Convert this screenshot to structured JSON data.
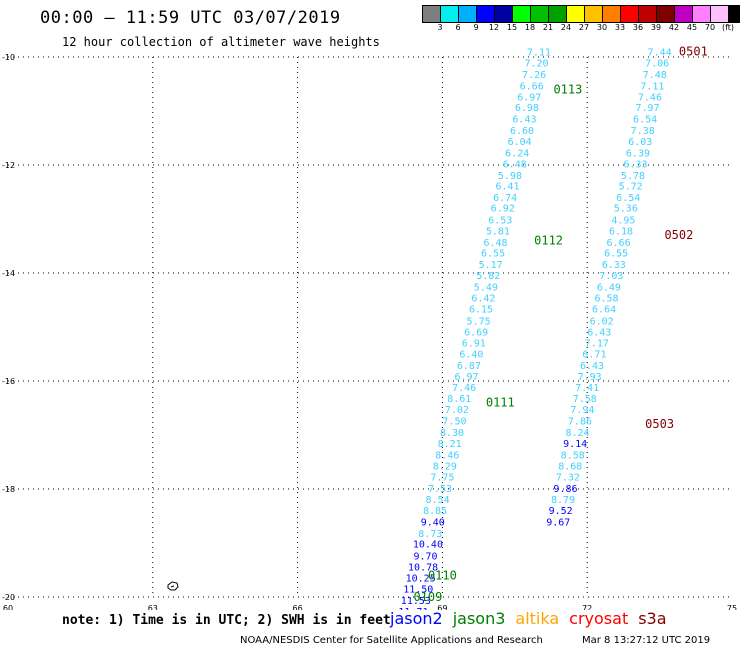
{
  "header": {
    "title": "00:00 – 11:59 UTC 03/07/2019",
    "subtitle": "12 hour collection of altimeter wave heights"
  },
  "scale": {
    "colors": [
      "#7f7f7f",
      "#00f0f0",
      "#00b0ff",
      "#0000ff",
      "#0000a0",
      "#00ff00",
      "#00c000",
      "#00a000",
      "#ffff00",
      "#ffc000",
      "#ff8000",
      "#ff0000",
      "#c00000",
      "#800000",
      "#c000c0",
      "#ff80ff",
      "#ffc0ff",
      "#000000"
    ],
    "labels": [
      "3",
      "6",
      "9",
      "12",
      "15",
      "18",
      "21",
      "24",
      "27",
      "30",
      "33",
      "36",
      "39",
      "42",
      "45",
      "70",
      "(ft)"
    ]
  },
  "chart_data": {
    "type": "scatter",
    "xlim": [
      60,
      75
    ],
    "ylim": [
      -20,
      -10
    ],
    "x_ticks": [
      "60",
      "63",
      "66",
      "69",
      "72",
      "75"
    ],
    "y_ticks": [
      "-10",
      "-12",
      "-14",
      "-16",
      "-18",
      "-20"
    ],
    "series": [
      {
        "labels": [
          {
            "text": "7.11",
            "lon": 71.0,
            "lat": -9.92,
            "color": "#40d0ff"
          },
          {
            "text": "7.20",
            "lon": 70.95,
            "lat": -10.12,
            "color": "#40d0ff"
          },
          {
            "text": "7.26",
            "lon": 70.9,
            "lat": -10.33,
            "color": "#40d0ff"
          },
          {
            "text": "6.66",
            "lon": 70.85,
            "lat": -10.55,
            "color": "#40d0ff"
          },
          {
            "text": "6.97",
            "lon": 70.8,
            "lat": -10.75,
            "color": "#40d0ff"
          },
          {
            "text": "6.98",
            "lon": 70.75,
            "lat": -10.94,
            "color": "#40d0ff"
          },
          {
            "text": "6.43",
            "lon": 70.7,
            "lat": -11.16,
            "color": "#40d0ff"
          },
          {
            "text": "6.60",
            "lon": 70.65,
            "lat": -11.37,
            "color": "#40d0ff"
          },
          {
            "text": "6.04",
            "lon": 70.6,
            "lat": -11.57,
            "color": "#40d0ff"
          },
          {
            "text": "6.24",
            "lon": 70.55,
            "lat": -11.79,
            "color": "#40d0ff"
          },
          {
            "text": "6.48",
            "lon": 70.5,
            "lat": -11.99,
            "color": "#40d0ff"
          },
          {
            "text": "5.98",
            "lon": 70.4,
            "lat": -12.2,
            "color": "#40d0ff"
          },
          {
            "text": "6.41",
            "lon": 70.35,
            "lat": -12.4,
            "color": "#40d0ff"
          },
          {
            "text": "6.74",
            "lon": 70.3,
            "lat": -12.61,
            "color": "#40d0ff"
          },
          {
            "text": "6.92",
            "lon": 70.25,
            "lat": -12.81,
            "color": "#40d0ff"
          },
          {
            "text": "6.53",
            "lon": 70.2,
            "lat": -13.03,
            "color": "#40d0ff"
          },
          {
            "text": "5.81",
            "lon": 70.15,
            "lat": -13.23,
            "color": "#40d0ff"
          },
          {
            "text": "6.48",
            "lon": 70.1,
            "lat": -13.44,
            "color": "#40d0ff"
          },
          {
            "text": "6.55",
            "lon": 70.05,
            "lat": -13.64,
            "color": "#40d0ff"
          },
          {
            "text": "5.17",
            "lon": 70.0,
            "lat": -13.85,
            "color": "#40d0ff"
          },
          {
            "text": "5.82",
            "lon": 69.95,
            "lat": -14.06,
            "color": "#40d0ff"
          },
          {
            "text": "5.49",
            "lon": 69.9,
            "lat": -14.27,
            "color": "#40d0ff"
          },
          {
            "text": "6.42",
            "lon": 69.85,
            "lat": -14.47,
            "color": "#40d0ff"
          },
          {
            "text": "6.15",
            "lon": 69.8,
            "lat": -14.68,
            "color": "#40d0ff"
          },
          {
            "text": "5.75",
            "lon": 69.75,
            "lat": -14.9,
            "color": "#40d0ff"
          },
          {
            "text": "6.69",
            "lon": 69.7,
            "lat": -15.1,
            "color": "#40d0ff"
          },
          {
            "text": "6.91",
            "lon": 69.65,
            "lat": -15.31,
            "color": "#40d0ff"
          },
          {
            "text": "6.40",
            "lon": 69.6,
            "lat": -15.51,
            "color": "#40d0ff"
          },
          {
            "text": "6.87",
            "lon": 69.55,
            "lat": -15.72,
            "color": "#40d0ff"
          },
          {
            "text": "6.97",
            "lon": 69.5,
            "lat": -15.93,
            "color": "#40d0ff"
          },
          {
            "text": "7.46",
            "lon": 69.45,
            "lat": -16.13,
            "color": "#40d0ff"
          },
          {
            "text": "8.61",
            "lon": 69.35,
            "lat": -16.33,
            "color": "#40d0ff"
          },
          {
            "text": "7.02",
            "lon": 69.3,
            "lat": -16.54,
            "color": "#40d0ff"
          },
          {
            "text": "7.50",
            "lon": 69.25,
            "lat": -16.75,
            "color": "#40d0ff"
          },
          {
            "text": "8.30",
            "lon": 69.2,
            "lat": -16.96,
            "color": "#40d0ff"
          },
          {
            "text": "8.21",
            "lon": 69.15,
            "lat": -17.17,
            "color": "#40d0ff"
          },
          {
            "text": "8.46",
            "lon": 69.1,
            "lat": -17.38,
            "color": "#40d0ff"
          },
          {
            "text": "8.29",
            "lon": 69.05,
            "lat": -17.58,
            "color": "#40d0ff"
          },
          {
            "text": "7.75",
            "lon": 69.0,
            "lat": -17.79,
            "color": "#40d0ff"
          },
          {
            "text": "7.53",
            "lon": 68.95,
            "lat": -18.0,
            "color": "#40d0ff"
          },
          {
            "text": "8.54",
            "lon": 68.9,
            "lat": -18.2,
            "color": "#40d0ff"
          },
          {
            "text": "8.85",
            "lon": 68.85,
            "lat": -18.41,
            "color": "#40d0ff"
          },
          {
            "text": "9.40",
            "lon": 68.8,
            "lat": -18.62,
            "color": "#0000ff"
          },
          {
            "text": "8.73",
            "lon": 68.75,
            "lat": -18.83,
            "color": "#40d0ff"
          },
          {
            "text": "10.40",
            "lon": 68.7,
            "lat": -19.03,
            "color": "#0000ff"
          },
          {
            "text": "9.70",
            "lon": 68.65,
            "lat": -19.25,
            "color": "#0000ff"
          },
          {
            "text": "10.78",
            "lon": 68.6,
            "lat": -19.45,
            "color": "#0000ff"
          },
          {
            "text": "10.25",
            "lon": 68.55,
            "lat": -19.66,
            "color": "#0000ff"
          },
          {
            "text": "11.50",
            "lon": 68.5,
            "lat": -19.86,
            "color": "#0000ff"
          },
          {
            "text": "11.53",
            "lon": 68.45,
            "lat": -20.07,
            "color": "#0000ff"
          },
          {
            "text": "11.71",
            "lon": 68.4,
            "lat": -20.28,
            "color": "#0000ff"
          }
        ]
      },
      {
        "labels": [
          {
            "text": "7.44",
            "lon": 73.5,
            "lat": -9.92,
            "color": "#40d0ff"
          },
          {
            "text": "7.06",
            "lon": 73.45,
            "lat": -10.12,
            "color": "#40d0ff"
          },
          {
            "text": "7.48",
            "lon": 73.4,
            "lat": -10.33,
            "color": "#40d0ff"
          },
          {
            "text": "7.11",
            "lon": 73.35,
            "lat": -10.55,
            "color": "#40d0ff"
          },
          {
            "text": "7.46",
            "lon": 73.3,
            "lat": -10.75,
            "color": "#40d0ff"
          },
          {
            "text": "7.97",
            "lon": 73.25,
            "lat": -10.94,
            "color": "#40d0ff"
          },
          {
            "text": "6.54",
            "lon": 73.2,
            "lat": -11.16,
            "color": "#40d0ff"
          },
          {
            "text": "7.38",
            "lon": 73.15,
            "lat": -11.37,
            "color": "#40d0ff"
          },
          {
            "text": "6.03",
            "lon": 73.1,
            "lat": -11.57,
            "color": "#40d0ff"
          },
          {
            "text": "6.39",
            "lon": 73.05,
            "lat": -11.79,
            "color": "#40d0ff"
          },
          {
            "text": "6.33",
            "lon": 73.0,
            "lat": -11.99,
            "color": "#40d0ff"
          },
          {
            "text": "5.78",
            "lon": 72.95,
            "lat": -12.2,
            "color": "#40d0ff"
          },
          {
            "text": "5.72",
            "lon": 72.9,
            "lat": -12.4,
            "color": "#40d0ff"
          },
          {
            "text": "6.54",
            "lon": 72.85,
            "lat": -12.61,
            "color": "#40d0ff"
          },
          {
            "text": "5.36",
            "lon": 72.8,
            "lat": -12.81,
            "color": "#40d0ff"
          },
          {
            "text": "4.95",
            "lon": 72.75,
            "lat": -13.03,
            "color": "#40d0ff"
          },
          {
            "text": "6.18",
            "lon": 72.7,
            "lat": -13.23,
            "color": "#40d0ff"
          },
          {
            "text": "6.66",
            "lon": 72.65,
            "lat": -13.44,
            "color": "#40d0ff"
          },
          {
            "text": "6.55",
            "lon": 72.6,
            "lat": -13.64,
            "color": "#40d0ff"
          },
          {
            "text": "6.33",
            "lon": 72.55,
            "lat": -13.85,
            "color": "#40d0ff"
          },
          {
            "text": "7.03",
            "lon": 72.5,
            "lat": -14.06,
            "color": "#40d0ff"
          },
          {
            "text": "6.49",
            "lon": 72.45,
            "lat": -14.27,
            "color": "#40d0ff"
          },
          {
            "text": "6.58",
            "lon": 72.4,
            "lat": -14.47,
            "color": "#40d0ff"
          },
          {
            "text": "6.64",
            "lon": 72.35,
            "lat": -14.68,
            "color": "#40d0ff"
          },
          {
            "text": "6.02",
            "lon": 72.3,
            "lat": -14.9,
            "color": "#40d0ff"
          },
          {
            "text": "6.43",
            "lon": 72.25,
            "lat": -15.1,
            "color": "#40d0ff"
          },
          {
            "text": "7.17",
            "lon": 72.2,
            "lat": -15.31,
            "color": "#40d0ff"
          },
          {
            "text": "6.71",
            "lon": 72.15,
            "lat": -15.51,
            "color": "#40d0ff"
          },
          {
            "text": "6.43",
            "lon": 72.1,
            "lat": -15.72,
            "color": "#40d0ff"
          },
          {
            "text": "7.93",
            "lon": 72.05,
            "lat": -15.93,
            "color": "#40d0ff"
          },
          {
            "text": "7.41",
            "lon": 72.0,
            "lat": -16.13,
            "color": "#40d0ff"
          },
          {
            "text": "7.58",
            "lon": 71.95,
            "lat": -16.33,
            "color": "#40d0ff"
          },
          {
            "text": "7.94",
            "lon": 71.9,
            "lat": -16.54,
            "color": "#40d0ff"
          },
          {
            "text": "7.86",
            "lon": 71.85,
            "lat": -16.75,
            "color": "#40d0ff"
          },
          {
            "text": "8.24",
            "lon": 71.8,
            "lat": -16.96,
            "color": "#40d0ff"
          },
          {
            "text": "9.14",
            "lon": 71.75,
            "lat": -17.17,
            "color": "#0000ff"
          },
          {
            "text": "8.58",
            "lon": 71.7,
            "lat": -17.38,
            "color": "#40d0ff"
          },
          {
            "text": "8.68",
            "lon": 71.65,
            "lat": -17.58,
            "color": "#40d0ff"
          },
          {
            "text": "7.32",
            "lon": 71.6,
            "lat": -17.79,
            "color": "#40d0ff"
          },
          {
            "text": "9.86",
            "lon": 71.55,
            "lat": -18.0,
            "color": "#0000ff"
          },
          {
            "text": "8.79",
            "lon": 71.5,
            "lat": -18.2,
            "color": "#40d0ff"
          },
          {
            "text": "9.52",
            "lon": 71.45,
            "lat": -18.41,
            "color": "#0000ff"
          },
          {
            "text": "9.67",
            "lon": 71.4,
            "lat": -18.62,
            "color": "#0000ff"
          }
        ]
      }
    ],
    "pass_labels": [
      {
        "text": "0113",
        "lon": 71.6,
        "lat": -10.6,
        "color": "#008000"
      },
      {
        "text": "0112",
        "lon": 71.2,
        "lat": -13.4,
        "color": "#008000"
      },
      {
        "text": "0111",
        "lon": 70.2,
        "lat": -16.4,
        "color": "#008000"
      },
      {
        "text": "0110",
        "lon": 69.0,
        "lat": -19.6,
        "color": "#008000"
      },
      {
        "text": "0109",
        "lon": 68.7,
        "lat": -20.0,
        "color": "#008000"
      },
      {
        "text": "0501",
        "lon": 74.2,
        "lat": -9.9,
        "color": "#800000"
      },
      {
        "text": "0502",
        "lon": 73.9,
        "lat": -13.3,
        "color": "#800000"
      },
      {
        "text": "0503",
        "lon": 73.5,
        "lat": -16.8,
        "color": "#800000"
      }
    ]
  },
  "note": "note: 1) Time is in UTC; 2) SWH is in feet",
  "legend": [
    {
      "label": "jason2",
      "color": "#0000ff"
    },
    {
      "label": "jason3",
      "color": "#008000"
    },
    {
      "label": "altika",
      "color": "#ffa500"
    },
    {
      "label": "cryosat",
      "color": "#ff0000"
    },
    {
      "label": "s3a",
      "color": "#800000"
    }
  ],
  "footer": {
    "agency": "NOAA/NESDIS Center for Satellite Applications and Research",
    "timestamp": "Mar  8 13:27:12 UTC 2019"
  }
}
